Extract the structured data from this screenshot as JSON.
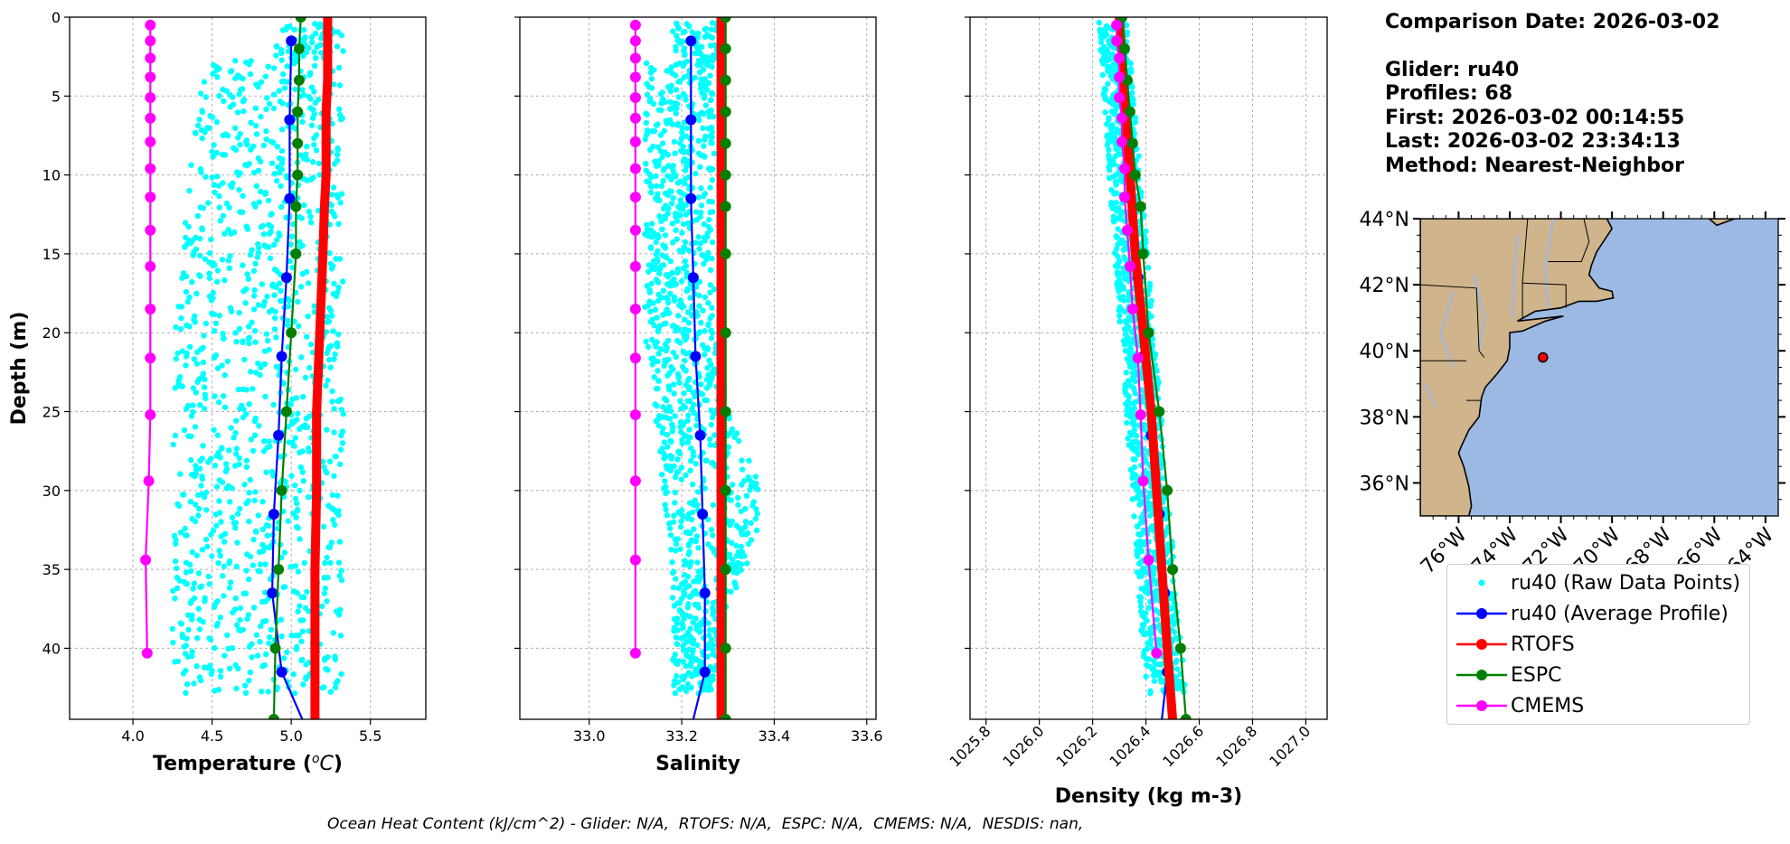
{
  "info": {
    "comparison_date": "Comparison Date: 2026-03-02",
    "glider": "Glider: ru40",
    "profiles": "Profiles: 68",
    "first": "First: 2026-03-02 00:14:55",
    "last": "Last: 2026-03-02 23:34:13",
    "method": "Method: Nearest-Neighbor"
  },
  "footer": "Ocean Heat Content (kJ/cm^2) - Glider: N/A,  RTOFS: N/A,  ESPC: N/A,  CMEMS: N/A,  NESDIS: nan,",
  "legend": [
    {
      "label": "ru40 (Raw Data Points)",
      "color": "#00ffff",
      "style": "points"
    },
    {
      "label": "ru40 (Average Profile)",
      "color": "#0000ff",
      "style": "line-marker"
    },
    {
      "label": "RTOFS",
      "color": "#ff0000",
      "style": "line-marker"
    },
    {
      "label": "ESPC",
      "color": "#008000",
      "style": "line-marker"
    },
    {
      "label": "CMEMS",
      "color": "#ff00ff",
      "style": "line-marker"
    }
  ],
  "chart_data": [
    {
      "type": "line",
      "xlabel": "Temperature ($^{o}C$)",
      "ylabel": "Depth (m)",
      "xlim": [
        3.6,
        5.85
      ],
      "ylim": [
        44.5,
        0
      ],
      "xticks": [
        "4.0",
        "4.5",
        "5.0",
        "5.5"
      ],
      "xtick_values": [
        4.0,
        4.5,
        5.0,
        5.5
      ],
      "yticks": [
        "0",
        "5",
        "10",
        "15",
        "20",
        "25",
        "30",
        "35",
        "40"
      ],
      "grid": true,
      "raw_points": {
        "name": "ru40 (Raw Data Points)",
        "depth_range": [
          0.5,
          43
        ],
        "x_range": [
          4.25,
          5.33
        ],
        "color": "#00ffff"
      },
      "series": [
        {
          "name": "ru40 (Average Profile)",
          "color": "#0000ff",
          "depth": [
            1.5,
            6.5,
            11.5,
            16.5,
            21.5,
            26.5,
            31.5,
            36.5,
            41.5
          ],
          "values": [
            5.0,
            4.99,
            4.99,
            4.97,
            4.94,
            4.92,
            4.89,
            4.88,
            4.94
          ],
          "tail_to": [
            5.07,
            44.5
          ]
        },
        {
          "name": "RTOFS",
          "color": "#ff0000",
          "depth": [
            0,
            2,
            4,
            6,
            8,
            10,
            12,
            15,
            20,
            25,
            30,
            35,
            40,
            44.5
          ],
          "values": [
            5.23,
            5.23,
            5.23,
            5.22,
            5.22,
            5.22,
            5.21,
            5.2,
            5.18,
            5.16,
            5.16,
            5.15,
            5.15,
            5.15
          ]
        },
        {
          "name": "ESPC",
          "color": "#008000",
          "depth": [
            0,
            2,
            4,
            6,
            8,
            10,
            12,
            15,
            20,
            25,
            30,
            35,
            40,
            44.5
          ],
          "values": [
            5.06,
            5.05,
            5.05,
            5.04,
            5.04,
            5.04,
            5.03,
            5.03,
            5.0,
            4.97,
            4.94,
            4.92,
            4.9,
            4.89
          ]
        },
        {
          "name": "CMEMS",
          "color": "#ff00ff",
          "depth": [
            0.5,
            1.5,
            2.6,
            3.8,
            5.1,
            6.4,
            7.9,
            9.6,
            11.4,
            13.5,
            15.8,
            18.5,
            21.6,
            25.2,
            29.4,
            34.4,
            40.3
          ],
          "values": [
            4.11,
            4.11,
            4.11,
            4.11,
            4.11,
            4.11,
            4.11,
            4.11,
            4.11,
            4.11,
            4.11,
            4.11,
            4.11,
            4.11,
            4.1,
            4.08,
            4.09
          ]
        }
      ]
    },
    {
      "type": "line",
      "xlabel": "Salinity",
      "ylabel": "",
      "xlim": [
        32.85,
        33.62
      ],
      "ylim": [
        44.5,
        0
      ],
      "xticks": [
        "33.0",
        "33.2",
        "33.4",
        "33.6"
      ],
      "xtick_values": [
        33.0,
        33.2,
        33.4,
        33.6
      ],
      "grid": true,
      "raw_points": {
        "name": "ru40 (Raw Data Points)",
        "depth_range": [
          0.5,
          43
        ],
        "x_range": [
          33.12,
          33.37
        ],
        "color": "#00ffff"
      },
      "series": [
        {
          "name": "ru40 (Average Profile)",
          "color": "#0000ff",
          "depth": [
            1.5,
            6.5,
            11.5,
            16.5,
            21.5,
            26.5,
            31.5,
            36.5,
            41.5
          ],
          "values": [
            33.22,
            33.22,
            33.22,
            33.225,
            33.23,
            33.24,
            33.245,
            33.25,
            33.25
          ],
          "tail_to": [
            33.225,
            44.5
          ]
        },
        {
          "name": "RTOFS",
          "color": "#ff0000",
          "depth": [
            0,
            5,
            10,
            15,
            20,
            25,
            30,
            35,
            40,
            44.5
          ],
          "values": [
            33.285,
            33.285,
            33.285,
            33.285,
            33.285,
            33.285,
            33.285,
            33.285,
            33.285,
            33.285
          ]
        },
        {
          "name": "ESPC",
          "color": "#008000",
          "depth": [
            0,
            2,
            4,
            6,
            8,
            10,
            12,
            15,
            20,
            25,
            30,
            35,
            40,
            44.5
          ],
          "values": [
            33.295,
            33.295,
            33.295,
            33.295,
            33.295,
            33.295,
            33.295,
            33.295,
            33.295,
            33.295,
            33.295,
            33.295,
            33.295,
            33.295
          ]
        },
        {
          "name": "CMEMS",
          "color": "#ff00ff",
          "depth": [
            0.5,
            1.5,
            2.6,
            3.8,
            5.1,
            6.4,
            7.9,
            9.6,
            11.4,
            13.5,
            15.8,
            18.5,
            21.6,
            25.2,
            29.4,
            34.4,
            40.3
          ],
          "values": [
            33.1,
            33.1,
            33.1,
            33.1,
            33.1,
            33.1,
            33.1,
            33.1,
            33.1,
            33.1,
            33.1,
            33.1,
            33.1,
            33.1,
            33.1,
            33.1,
            33.1
          ]
        }
      ]
    },
    {
      "type": "line",
      "xlabel": "Density (kg m-3)",
      "ylabel": "",
      "xlim": [
        1025.74,
        1027.08
      ],
      "ylim": [
        44.5,
        0
      ],
      "xticks": [
        "1025.8",
        "1026.0",
        "1026.2",
        "1026.4",
        "1026.6",
        "1026.8",
        "1027.0"
      ],
      "xtick_values": [
        1025.8,
        1026.0,
        1026.2,
        1026.4,
        1026.6,
        1026.8,
        1027.0
      ],
      "grid": true,
      "raw_points": {
        "name": "ru40 (Raw Data Points)",
        "depth_range": [
          0.5,
          43
        ],
        "x_range_top": [
          1026.22,
          1026.33
        ],
        "x_range_bottom": [
          1026.4,
          1026.55
        ],
        "color": "#00ffff"
      },
      "series": [
        {
          "name": "ru40 (Average Profile)",
          "color": "#0000ff",
          "depth": [
            1.5,
            6.5,
            11.5,
            16.5,
            21.5,
            26.5,
            31.5,
            36.5,
            41.5
          ],
          "values": [
            1026.3,
            1026.32,
            1026.34,
            1026.37,
            1026.39,
            1026.42,
            1026.45,
            1026.47,
            1026.48
          ],
          "tail_to": [
            1026.46,
            44.5
          ]
        },
        {
          "name": "RTOFS",
          "color": "#ff0000",
          "depth": [
            0,
            5,
            10,
            15,
            20,
            25,
            30,
            35,
            40,
            44.5
          ],
          "values": [
            1026.3,
            1026.32,
            1026.34,
            1026.36,
            1026.39,
            1026.42,
            1026.44,
            1026.46,
            1026.48,
            1026.5
          ]
        },
        {
          "name": "ESPC",
          "color": "#008000",
          "depth": [
            0,
            2,
            4,
            6,
            8,
            10,
            12,
            15,
            20,
            25,
            30,
            35,
            40,
            44.5
          ],
          "values": [
            1026.31,
            1026.32,
            1026.33,
            1026.34,
            1026.35,
            1026.36,
            1026.38,
            1026.39,
            1026.41,
            1026.45,
            1026.48,
            1026.5,
            1026.53,
            1026.55
          ]
        },
        {
          "name": "CMEMS",
          "color": "#ff00ff",
          "depth": [
            0.5,
            1.5,
            2.6,
            3.8,
            5.1,
            6.4,
            7.9,
            9.6,
            11.4,
            13.5,
            15.8,
            18.5,
            21.6,
            25.2,
            29.4,
            34.4,
            40.3
          ],
          "values": [
            1026.29,
            1026.29,
            1026.3,
            1026.3,
            1026.3,
            1026.31,
            1026.31,
            1026.32,
            1026.32,
            1026.33,
            1026.34,
            1026.35,
            1026.37,
            1026.38,
            1026.39,
            1026.41,
            1026.44
          ]
        }
      ]
    },
    {
      "type": "map",
      "lon_range": [
        -77.5,
        -63.5
      ],
      "lat_range": [
        35,
        44
      ],
      "lat_ticks": [
        "44°N",
        "42°N",
        "40°N",
        "38°N",
        "36°N"
      ],
      "lat_values": [
        44,
        42,
        40,
        38,
        36
      ],
      "lon_ticks": [
        "76°W",
        "74°W",
        "72°W",
        "70°W",
        "68°W",
        "66°W",
        "64°W"
      ],
      "lon_values": [
        -76,
        -74,
        -72,
        -70,
        -68,
        -66,
        -64
      ],
      "land_color": "#cfb48c",
      "ocean_color": "#9bb9e3",
      "marker": {
        "lon": -72.7,
        "lat": 39.8,
        "color": "#ff0000"
      }
    }
  ]
}
